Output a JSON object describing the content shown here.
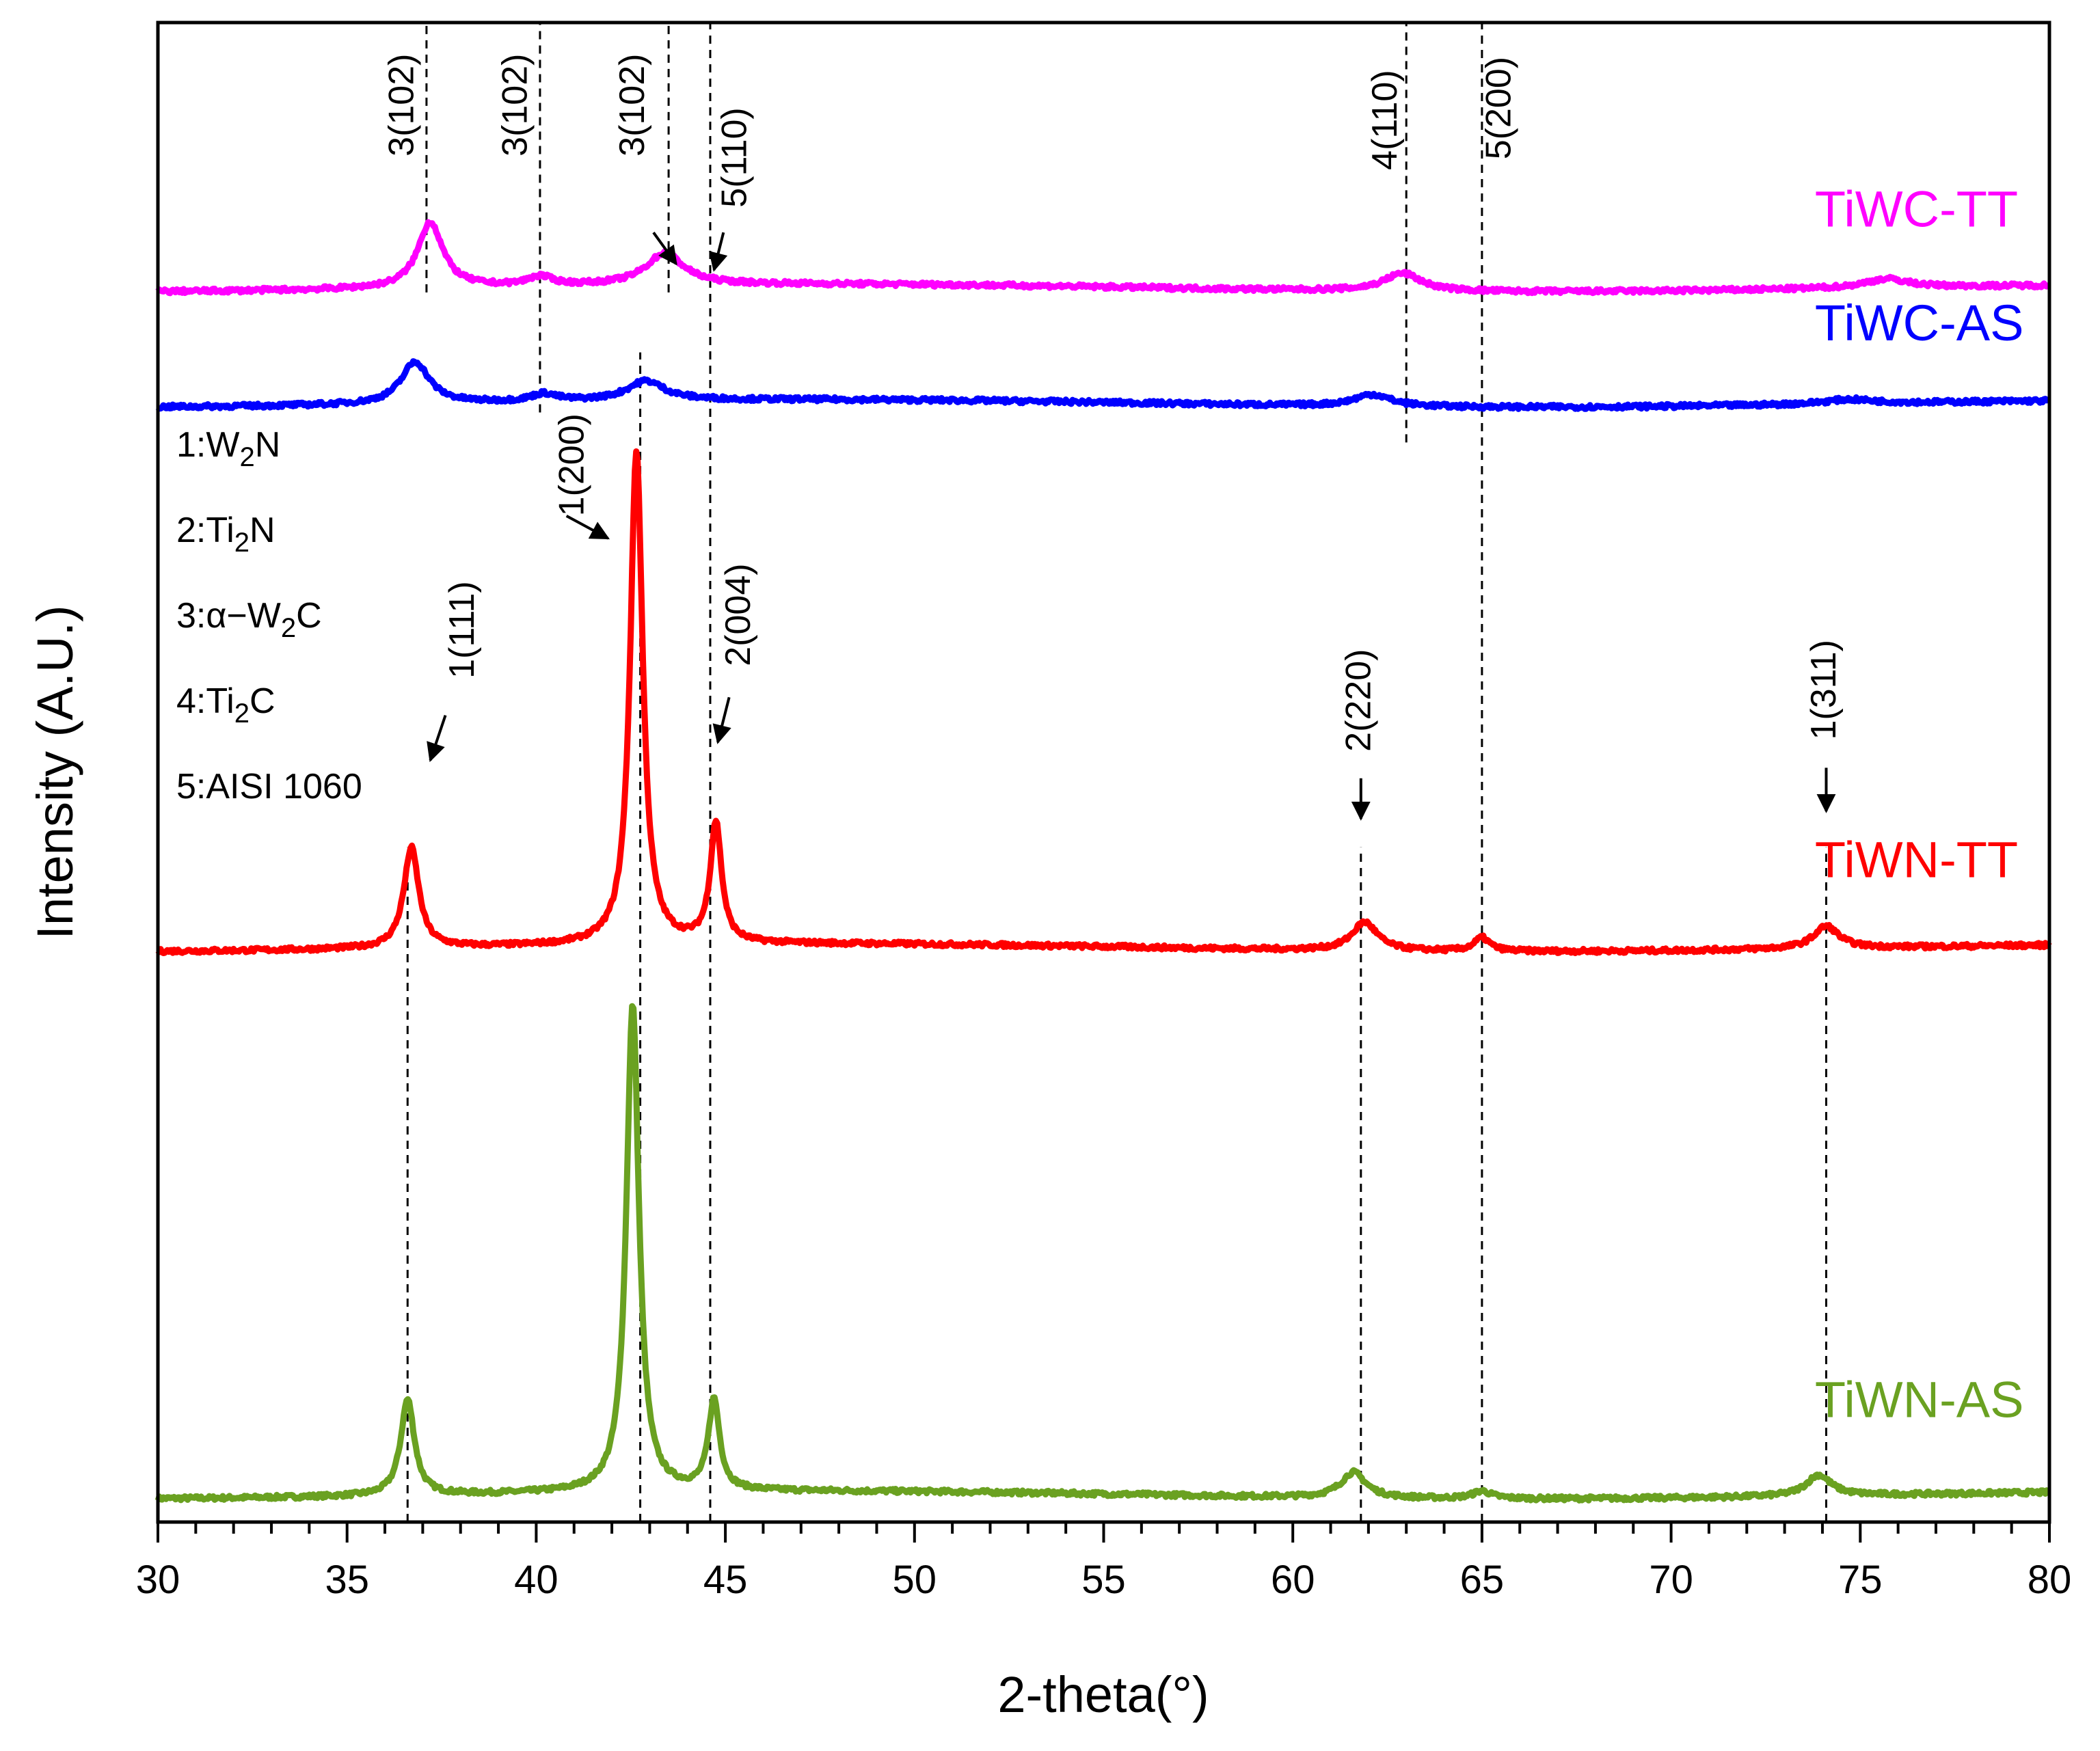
{
  "chart_data": {
    "type": "line",
    "xlabel": "2-theta(°)",
    "ylabel": "Intensity (A.U.)",
    "xlim": [
      30,
      80
    ],
    "ylim": [
      0,
      100
    ],
    "x_ticks": [
      "30",
      "35",
      "40",
      "45",
      "50",
      "55",
      "60",
      "65",
      "70",
      "75",
      "80"
    ],
    "y_ticks_shown": false,
    "baseline_offsets": {
      "TiWN-AS": 1.8,
      "TiWN-TT": 38.3,
      "TiWC-AS": 74.6,
      "TiWC-TT": 82.3
    },
    "series": [
      {
        "name": "TiWN-AS",
        "color": "#6aa121",
        "peaks": [
          {
            "x": 36.6,
            "height": 6.4,
            "width": 0.22
          },
          {
            "x": 42.55,
            "height": 32.5,
            "width": 0.2
          },
          {
            "x": 44.7,
            "height": 6.0,
            "width": 0.18
          },
          {
            "x": 61.6,
            "height": 1.7,
            "width": 0.4
          },
          {
            "x": 65.0,
            "height": 0.5,
            "width": 0.3
          },
          {
            "x": 73.9,
            "height": 1.4,
            "width": 0.4
          }
        ]
      },
      {
        "name": "TiWN-TT",
        "color": "#ff0000",
        "peaks": [
          {
            "x": 36.7,
            "height": 6.7,
            "width": 0.24
          },
          {
            "x": 42.65,
            "height": 33.0,
            "width": 0.2
          },
          {
            "x": 44.75,
            "height": 8.0,
            "width": 0.18
          },
          {
            "x": 61.9,
            "height": 1.9,
            "width": 0.4
          },
          {
            "x": 65.0,
            "height": 0.9,
            "width": 0.25
          },
          {
            "x": 74.1,
            "height": 1.5,
            "width": 0.4
          }
        ]
      },
      {
        "name": "TiWC-AS",
        "color": "#0000ff",
        "peaks": [
          {
            "x": 36.8,
            "height": 2.8,
            "width": 0.45
          },
          {
            "x": 40.2,
            "height": 0.5,
            "width": 0.4
          },
          {
            "x": 42.9,
            "height": 1.3,
            "width": 0.6
          },
          {
            "x": 62.1,
            "height": 0.8,
            "width": 0.6
          },
          {
            "x": 74.7,
            "height": 0.3,
            "width": 0.8
          }
        ]
      },
      {
        "name": "TiWC-TT",
        "color": "#ff00ff",
        "peaks": [
          {
            "x": 37.2,
            "height": 4.4,
            "width": 0.4
          },
          {
            "x": 40.1,
            "height": 0.6,
            "width": 0.4
          },
          {
            "x": 43.4,
            "height": 2.1,
            "width": 0.6
          },
          {
            "x": 62.9,
            "height": 1.2,
            "width": 0.6
          },
          {
            "x": 75.7,
            "height": 0.6,
            "width": 0.7
          }
        ]
      }
    ],
    "reference_lines": [
      {
        "x": 37.1,
        "from": 82,
        "to": 100
      },
      {
        "x": 40.1,
        "from": 74,
        "to": 100
      },
      {
        "x": 43.5,
        "from": 82,
        "to": 100
      },
      {
        "x": 44.6,
        "from": 0,
        "to": 100
      },
      {
        "x": 63.0,
        "from": 72,
        "to": 100
      },
      {
        "x": 65.0,
        "from": 0,
        "to": 100
      },
      {
        "x": 42.75,
        "from": 0,
        "to": 78
      },
      {
        "x": 36.6,
        "from": 0,
        "to": 45
      },
      {
        "x": 61.8,
        "from": 0,
        "to": 45
      },
      {
        "x": 74.1,
        "from": 0,
        "to": 45
      }
    ],
    "peak_labels": [
      {
        "text": "3(102)",
        "x": 36.5,
        "y": 94.5
      },
      {
        "text": "3(102)",
        "x": 39.5,
        "y": 94.5
      },
      {
        "text": "3(102)",
        "x": 42.6,
        "y": 94.5
      },
      {
        "text": "5(110)",
        "x": 45.3,
        "y": 91.0
      },
      {
        "text": "4(110)",
        "x": 62.5,
        "y": 93.5
      },
      {
        "text": "5(200)",
        "x": 65.5,
        "y": 94.3
      },
      {
        "text": "1(200)",
        "x": 41.0,
        "y": 70.5
      },
      {
        "text": "1(111)",
        "x": 38.1,
        "y": 59.5
      },
      {
        "text": "2(004)",
        "x": 45.4,
        "y": 60.5
      },
      {
        "text": "2(220)",
        "x": 61.8,
        "y": 54.8
      },
      {
        "text": "1(311)",
        "x": 74.1,
        "y": 55.5
      }
    ],
    "arrows": [
      {
        "x1": 43.1,
        "y1": 86.0,
        "x2": 43.7,
        "y2": 83.9
      },
      {
        "x1": 44.95,
        "y1": 86.0,
        "x2": 44.7,
        "y2": 83.5
      },
      {
        "x1": 40.8,
        "y1": 67.1,
        "x2": 41.9,
        "y2": 65.6
      },
      {
        "x1": 37.6,
        "y1": 53.8,
        "x2": 37.2,
        "y2": 50.8
      },
      {
        "x1": 45.1,
        "y1": 55.0,
        "x2": 44.8,
        "y2": 52.0
      },
      {
        "x1": 61.8,
        "y1": 49.6,
        "x2": 61.8,
        "y2": 46.9
      },
      {
        "x1": 74.1,
        "y1": 50.3,
        "x2": 74.1,
        "y2": 47.4
      }
    ],
    "legend_entries": [
      {
        "prefix": "1:W",
        "sub": "2",
        "suffix": "N"
      },
      {
        "prefix": "2:Ti",
        "sub": "2",
        "suffix": "N"
      },
      {
        "prefix": "3:α−W",
        "sub": "2",
        "suffix": "C"
      },
      {
        "prefix": "4:Ti",
        "sub": "2",
        "suffix": "C"
      },
      {
        "prefix": "5:AISI 1060",
        "sub": "",
        "suffix": ""
      }
    ],
    "series_labels": [
      {
        "text": "TiWC-TT",
        "color": "#ff00ff",
        "x": 73.8,
        "y": 86.4
      },
      {
        "text": "TiWC-AS",
        "color": "#0000ff",
        "x": 73.8,
        "y": 78.8
      },
      {
        "text": "TiWN-TT",
        "color": "#ff0000",
        "x": 73.8,
        "y": 43.0
      },
      {
        "text": "TiWN-AS",
        "color": "#6aa121",
        "x": 73.8,
        "y": 7.0
      }
    ]
  }
}
